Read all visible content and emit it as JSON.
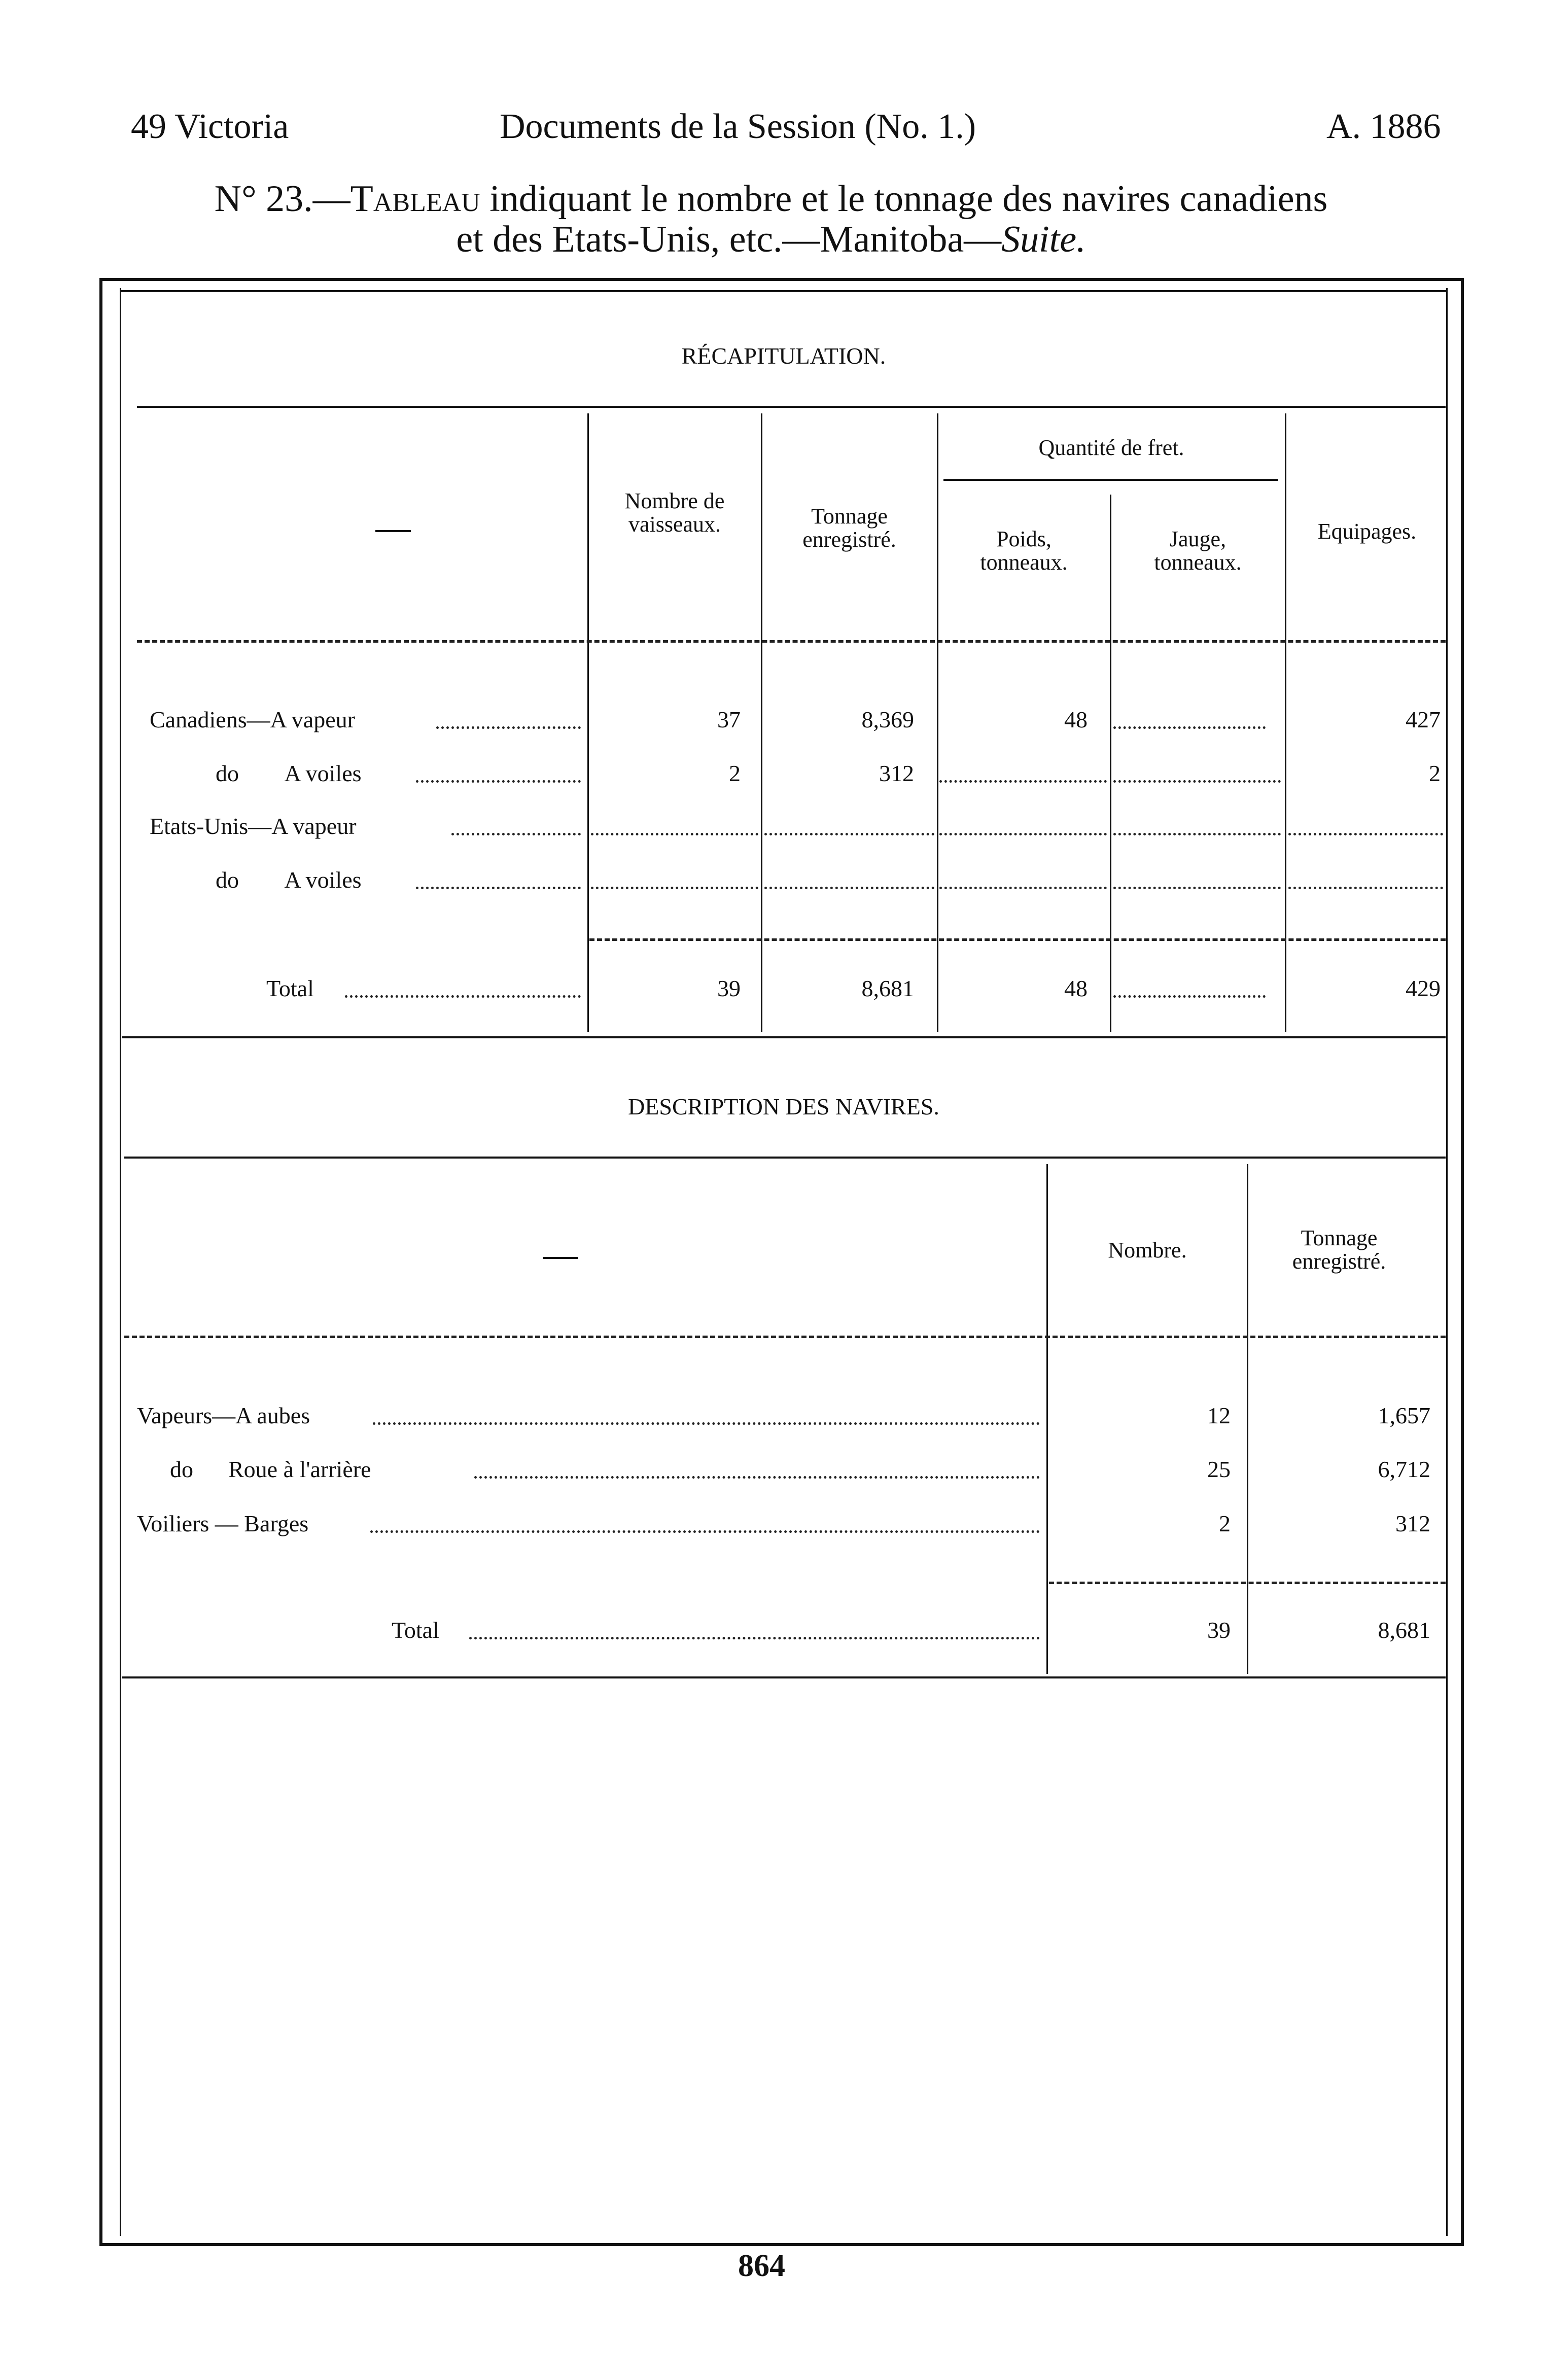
{
  "header": {
    "left": "49 Victoria",
    "center": "Documents de la Session (No. 1.)",
    "right": "A. 1886"
  },
  "title": {
    "number": "N° 23.—",
    "lead": "Tableau",
    "line1_rest": " indiquant le nombre et le tonnage des navires canadiens",
    "line2": "et des Etats-Unis, etc.—Manitoba—",
    "line2_italic": "Suite."
  },
  "recap": {
    "heading": "RÉCAPITULATION.",
    "columns": {
      "nombre": "Nombre de vaisseaux.",
      "tonnage": "Tonnage enregistré.",
      "quantite": "Quantité de fret.",
      "poids": "Poids, tonneaux.",
      "jauge": "Jauge, tonneaux.",
      "equipages": "Equipages."
    },
    "rows": [
      {
        "label": "Canadiens—A vapeur",
        "nombre": "37",
        "tonnage": "8,369",
        "poids": "48",
        "jauge": "",
        "equipages": "427"
      },
      {
        "label": "do        A voiles",
        "nombre": "2",
        "tonnage": "312",
        "poids": "",
        "jauge": "",
        "equipages": "2"
      },
      {
        "label": "Etats-Unis—A vapeur",
        "nombre": "",
        "tonnage": "",
        "poids": "",
        "jauge": "",
        "equipages": ""
      },
      {
        "label": "do        A voiles",
        "nombre": "",
        "tonnage": "",
        "poids": "",
        "jauge": "",
        "equipages": ""
      }
    ],
    "total": {
      "label": "Total",
      "nombre": "39",
      "tonnage": "8,681",
      "poids": "48",
      "jauge": "",
      "equipages": "429"
    }
  },
  "description": {
    "heading": "DESCRIPTION DES NAVIRES.",
    "columns": {
      "nombre": "Nombre.",
      "tonnage": "Tonnage enregistré."
    },
    "rows": [
      {
        "label": "Vapeurs—A aubes",
        "nombre": "12",
        "tonnage": "1,657"
      },
      {
        "label": "do      Roue à l'arrière",
        "nombre": "25",
        "tonnage": "6,712"
      },
      {
        "label": "Voiliers — Barges",
        "nombre": "2",
        "tonnage": "312"
      }
    ],
    "total": {
      "label": "Total",
      "nombre": "39",
      "tonnage": "8,681"
    }
  },
  "page_number": "864"
}
